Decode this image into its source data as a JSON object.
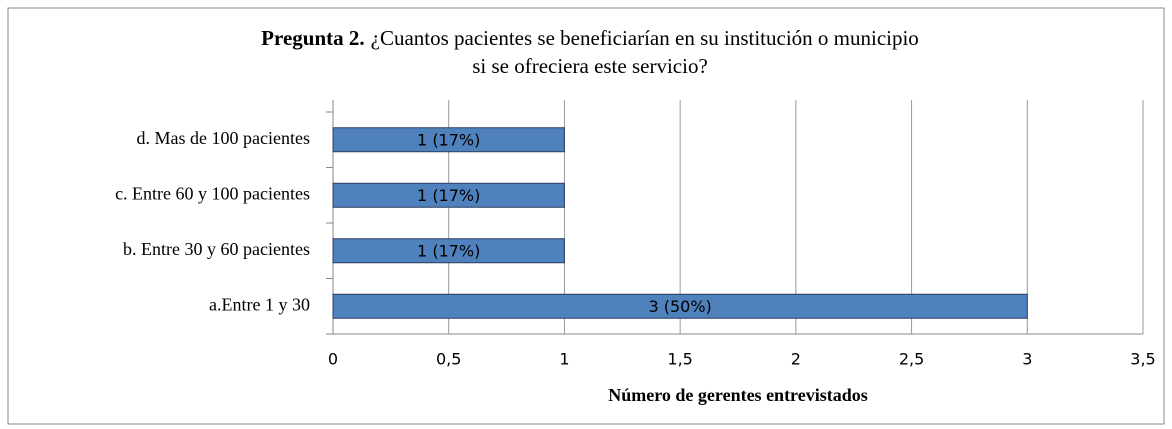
{
  "chart_data": {
    "type": "barh",
    "title": [
      "Pregunta 2.",
      "¿Cuantos pacientes se beneficiarían en su institución o municipio",
      "si se ofreciera este servicio?"
    ],
    "categories": [
      "a.Entre 1 y 30",
      "b. Entre 30 y 60 pacientes",
      "c. Entre 60 y 100 pacientes",
      "d. Mas de 100 pacientes"
    ],
    "values": [
      3,
      1,
      1,
      1
    ],
    "value_labels": [
      "3 (50%)",
      "1 (17%)",
      "1 (17%)",
      "1 (17%)"
    ],
    "color": "#4f81bd",
    "xlabel": "Número de gerentes entrevistados",
    "xlim": [
      0,
      3.5
    ],
    "xticks": [
      0,
      {
        "value": 0.5,
        "label": "0,5"
      },
      1,
      {
        "value": 1.5,
        "label": "1,5"
      },
      2,
      {
        "value": 2.5,
        "label": "2,5"
      },
      3,
      {
        "value": 3.5,
        "label": "3,5"
      }
    ],
    "grid": true
  }
}
